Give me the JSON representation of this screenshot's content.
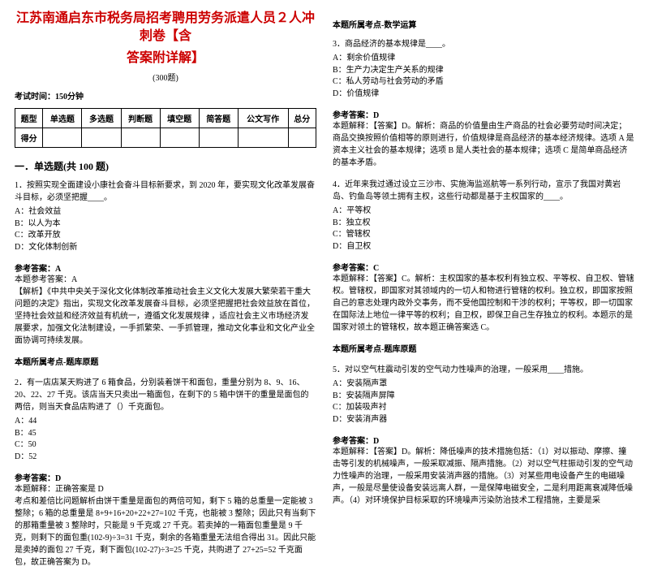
{
  "header": {
    "title_line1": "江苏南通启东市税务局招考聘用劳务派遣人员２人冲刺卷【含",
    "title_line2": "答案附详解】",
    "subtitle": "(300题)",
    "exam_time": "考试时间：150分钟"
  },
  "score_table": {
    "row1": [
      "题型",
      "单选题",
      "多选题",
      "判断题",
      "填空题",
      "简答题",
      "公文写作",
      "总分"
    ],
    "row2_head": "得分"
  },
  "section1_title": "一．单选题(共 100 题)",
  "q1": {
    "stem": "1．按照实现全面建设小康社会奋斗目标新要求，到 2020 年，要实现文化改革发展奋斗目标，必须坚把握____。",
    "opts": [
      "A：社会效益",
      "B：以人为本",
      "C：改革开放",
      "D：文化体制创新"
    ],
    "ans": "参考答案：A",
    "ans2": "本题参考答案：A",
    "expl": "【解析】《中共中央关于深化文化体制改革推动社会主义文化大发展大繁荣若干重大问题的决定》指出，实现文化改革发展奋斗目标，必须坚把握把社会效益放在首位，坚持社会效益和经济效益有机统一，遵循文化发展规律 ，适应社会主义市场经济发展要求，加强文化法制建设，一手抓繁荣、一手抓管理，推动文化事业和文化产业全面协调可持续发展。",
    "kaodian": "本题所属考点-题库原题"
  },
  "q2": {
    "stem": "2．有一店店某天购进了 6 箱食品，分别装着饼干和面包，重量分别为 8、9、16、20、22、27 千克。该店当天只卖出一箱面包，在剩下的 5 箱中饼干的重量是面包的两倍，则当天食品店购进了（）千克面包。",
    "opts": [
      "A：44",
      "B：45",
      "C：50",
      "D：52"
    ],
    "ans": "参考答案：D",
    "ans2": "本题解释：正确答案是 D",
    "expl": "考点和差倍比问题解析由饼干重量是面包的两倍可知，剩下 5 箱的总重量一定能被 3 整除；6 箱的总重量是 8+9+16+20+22+27=102 千克，也能被 3 整除；因此只有当剩下的那箱重量被 3 整除时，只能是 9 千克或 27 千克。若卖掉的一箱面包重量是 9 千克，则剩下的面包重(102-9)÷3=31 千克，剩余的各箱重量无法组合得出 31。因此只能是卖掉的面包 27 千克，剩下面包(102-27)÷3=25 千克，共购进了 27+25=52 千克面包，故正确答案为 D。"
  },
  "right_kaodian": "本题所属考点-数学运算",
  "q3": {
    "stem": "3．商品经济的基本规律是____。",
    "opts": [
      "A：剩余价值规律",
      "B：生产力决定生产关系的规律",
      "C：私人劳动与社会劳动的矛盾",
      "D：价值规律"
    ],
    "ans": "参考答案：D",
    "expl": "本题解释：【答案】D。解析：商品的价值量由生产商品的社会必要劳动时间决定；商品交换按照价值相等的原则进行，价值规律是商品经济的基本经济规律。选项 A 是资本主义社会的基本规律；选项 B 是人类社会的基本规律；选项 C 是简单商品经济的基本矛盾。"
  },
  "q4": {
    "stem": "4．近年来我过通过设立三沙市、实施海监巡航等一系列行动，宣示了我国对黄岩岛、钓鱼岛等领土拥有主权，这些行动都是基于主权国家的____。",
    "opts": [
      "A：平等权",
      "B：独立权",
      "C：管辖权",
      "D：自卫权"
    ],
    "ans": "参考答案：C",
    "expl": "本题解释：【答案】C。解析：主权国家的基本权利有独立权、平等权、自卫权、管辖权。管辖权，即国家对其领域内的一切人和物进行管辖的权利。独立权，即国家按照自己的意志处理内政外交事务，而不受他国控制和干涉的权利；平等权，即一切国家在国际法上地位一律平等的权利；自卫权，即保卫自己生存独立的权利。本题示的是国家对领土的管辖权，故本题正确答案选 C。",
    "kaodian": "本题所属考点-题库原题"
  },
  "q5": {
    "stem": "5．对以空气柱震动引发的空气动力性噪声的治理，一般采用____措施。",
    "opts": [
      "A：安装隔声罩",
      "B：安装隔声屏障",
      "C：加装吸声衬",
      "D：安装消声器"
    ],
    "ans": "参考答案：D",
    "expl": "本题解释：【答案】D。解析：降低噪声的技术措施包括：（1）对以振动、摩擦、撞击等引发的机械噪声，一般采取减振、隔声措施。（2）对以空气柱振动引发的空气动力性噪声的治理，一般采用安装消声器的措施。（3）对某些用电设备产生的电磁噪声，一般是尽量使设备安装远离人群，一是保障电磁安全，二是利用距离衰减降低噪声。（4）对环境保护目标采取的环境噪声污染防治技术工程措施，主要是采"
  }
}
